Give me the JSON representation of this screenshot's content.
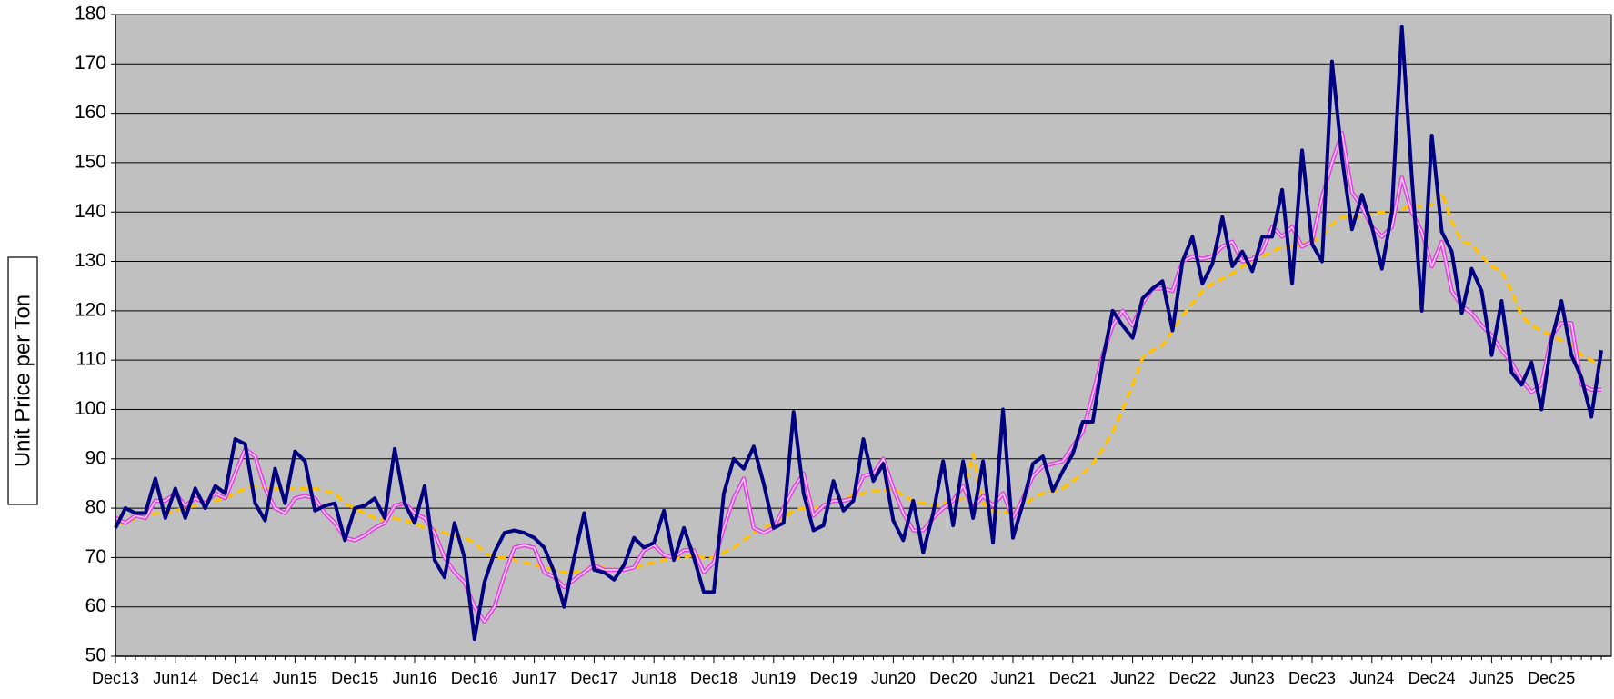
{
  "chart_data": {
    "type": "line",
    "y_label": "Unit Price per Ton",
    "categories": [
      "Dec13",
      null,
      null,
      null,
      null,
      null,
      "Jun14",
      null,
      null,
      null,
      null,
      null,
      "Dec14",
      null,
      null,
      null,
      null,
      null,
      "Jun15",
      null,
      null,
      null,
      null,
      null,
      "Dec15",
      null,
      null,
      null,
      null,
      null,
      "Jun16",
      null,
      null,
      null,
      null,
      null,
      "Dec16",
      null,
      null,
      null,
      null,
      null,
      "Jun17",
      null,
      null,
      null,
      null,
      null,
      "Dec17",
      null,
      null,
      null,
      null,
      null,
      "Jun18",
      null,
      null,
      null,
      null,
      null,
      "Dec18",
      null,
      null,
      null,
      null,
      null,
      "Jun19",
      null,
      null,
      null,
      null,
      null,
      "Dec19",
      null,
      null,
      null,
      null,
      null,
      "Jun20",
      null,
      null,
      null,
      null,
      null,
      "Dec20",
      null,
      null,
      null,
      null,
      null,
      "Jun21",
      null,
      null,
      null,
      null,
      null,
      "Dec21",
      null,
      null,
      null,
      null,
      null,
      "Jun22",
      null,
      null,
      null,
      null,
      null,
      "Dec22",
      null,
      null,
      null,
      null,
      null,
      "Jun23",
      null,
      null,
      null,
      null,
      null,
      "Dec23",
      null,
      null,
      null,
      null,
      null,
      "Jun24",
      null,
      null,
      null,
      null,
      null,
      "Dec24",
      null,
      null,
      null,
      null,
      null,
      "Jun25",
      null,
      null,
      null,
      null,
      null,
      "Dec25",
      null,
      null,
      null,
      null,
      null
    ],
    "series": [
      {
        "color": "#ffc000",
        "style": "dashed",
        "values": [
          77,
          77,
          78,
          78,
          79,
          79,
          79.5,
          80,
          80.5,
          81,
          81.5,
          82,
          83,
          84,
          84.5,
          84,
          84,
          84,
          84,
          84,
          84,
          83.5,
          83,
          81,
          80,
          79,
          78,
          77.5,
          78,
          77.5,
          77,
          76,
          75.5,
          75,
          74.5,
          74,
          73,
          71,
          70,
          70,
          69.5,
          69,
          68.5,
          68,
          67.5,
          67,
          67,
          67.5,
          68,
          68,
          67.5,
          67.5,
          68,
          68.5,
          69,
          69.5,
          70,
          70,
          70.5,
          70,
          70,
          71,
          72,
          73.5,
          75,
          76,
          77,
          78,
          79.5,
          80,
          80,
          80.5,
          81.5,
          82,
          82.5,
          83,
          83.5,
          83.5,
          84,
          82.5,
          81.5,
          81,
          80.5,
          81,
          81.5,
          82,
          91,
          81,
          79.5,
          79,
          79.5,
          80.5,
          82,
          83,
          83.5,
          84,
          85.5,
          87,
          89,
          92,
          95.5,
          100,
          105,
          110.5,
          112,
          113,
          116,
          119,
          121.5,
          124,
          125.5,
          126.5,
          127.5,
          129,
          130,
          131,
          132,
          133,
          133,
          133.5,
          134,
          135,
          137.5,
          139,
          139,
          139,
          139.5,
          140,
          140,
          140.5,
          141.5,
          141,
          141.5,
          144,
          138,
          134,
          133.5,
          131,
          129,
          128,
          124,
          119,
          117,
          116,
          115,
          114,
          113,
          111,
          110,
          108.5
        ]
      },
      {
        "color": "#e040e0",
        "style": "double",
        "values": [
          78,
          77,
          78.5,
          78,
          81.5,
          81.5,
          83,
          80.5,
          82,
          81,
          83,
          82,
          87,
          92,
          90.5,
          84,
          80,
          79,
          82,
          82.5,
          82,
          79,
          77,
          74,
          73.5,
          74.5,
          76,
          77,
          80.5,
          81,
          79,
          78,
          75,
          70,
          67,
          65,
          60,
          57,
          60,
          66.5,
          72,
          72.5,
          72,
          67,
          66,
          64,
          65.5,
          67,
          68.5,
          67.5,
          67.5,
          67.5,
          68,
          71.5,
          72.5,
          70.5,
          70,
          71.5,
          71.5,
          67,
          69,
          76,
          82,
          86,
          76,
          75,
          76,
          80,
          84,
          87,
          78.5,
          80.5,
          81.5,
          81.5,
          82,
          86.5,
          87,
          90,
          84,
          79,
          75.5,
          75.5,
          78,
          80,
          81.5,
          84.5,
          80,
          82.5,
          80.5,
          83,
          78,
          82,
          86.5,
          88.5,
          89,
          89.5,
          92.5,
          95.5,
          103,
          111,
          117,
          120,
          117,
          121.5,
          124.5,
          124.5,
          124,
          130,
          131,
          130.5,
          131,
          133,
          134,
          130,
          130.5,
          132,
          137,
          135,
          137,
          133,
          134,
          143,
          150,
          156,
          144,
          141,
          137,
          135,
          137,
          147,
          140,
          136,
          129,
          134,
          124,
          121,
          119.5,
          117,
          115,
          112,
          109.5,
          106,
          103.5,
          105,
          115,
          117.5,
          117.5,
          105,
          104,
          104
        ]
      },
      {
        "color": "#000080",
        "style": "solid",
        "values": [
          76,
          80,
          79,
          79,
          86,
          78,
          84,
          78,
          84,
          80,
          84.5,
          83,
          94,
          93,
          81,
          77.5,
          88,
          81,
          91.5,
          89.5,
          79.5,
          80.5,
          81,
          73.5,
          80,
          80.5,
          82,
          78,
          92,
          81,
          77,
          84.5,
          69.5,
          66,
          77,
          70,
          53.5,
          65,
          71,
          75,
          75.5,
          75,
          74,
          72,
          67,
          60,
          70,
          79,
          67.5,
          67,
          65.5,
          68.5,
          74,
          72,
          73,
          79.5,
          69.5,
          76,
          70,
          63,
          63,
          83,
          90,
          88,
          92.5,
          85,
          76,
          77,
          99.5,
          83,
          75.5,
          76.5,
          85.5,
          79.5,
          81.5,
          94,
          85.5,
          89,
          77.5,
          73.5,
          81.5,
          71,
          79,
          89.5,
          76.5,
          89.5,
          78,
          89.5,
          73,
          100,
          74,
          81,
          89,
          90.5,
          83.5,
          87.5,
          91,
          97.5,
          97.5,
          110,
          120,
          117,
          114.5,
          122.5,
          124.5,
          126,
          116,
          130,
          135,
          125.5,
          129.5,
          139,
          129,
          132,
          128,
          135,
          135,
          144.5,
          125.5,
          152.5,
          133.5,
          130,
          170.5,
          151,
          136.5,
          143.5,
          137,
          128.5,
          140,
          177.5,
          147,
          120,
          155.5,
          136,
          132,
          119.5,
          128.5,
          124,
          111,
          122,
          107.5,
          105,
          109.5,
          100,
          114,
          122,
          111,
          106.5,
          98.5,
          112
        ]
      }
    ],
    "ylim": [
      50,
      180
    ],
    "yticks": [
      50,
      60,
      70,
      80,
      90,
      100,
      110,
      120,
      130,
      140,
      150,
      160,
      170,
      180
    ],
    "grid": true,
    "background": "#c0c0c0"
  }
}
